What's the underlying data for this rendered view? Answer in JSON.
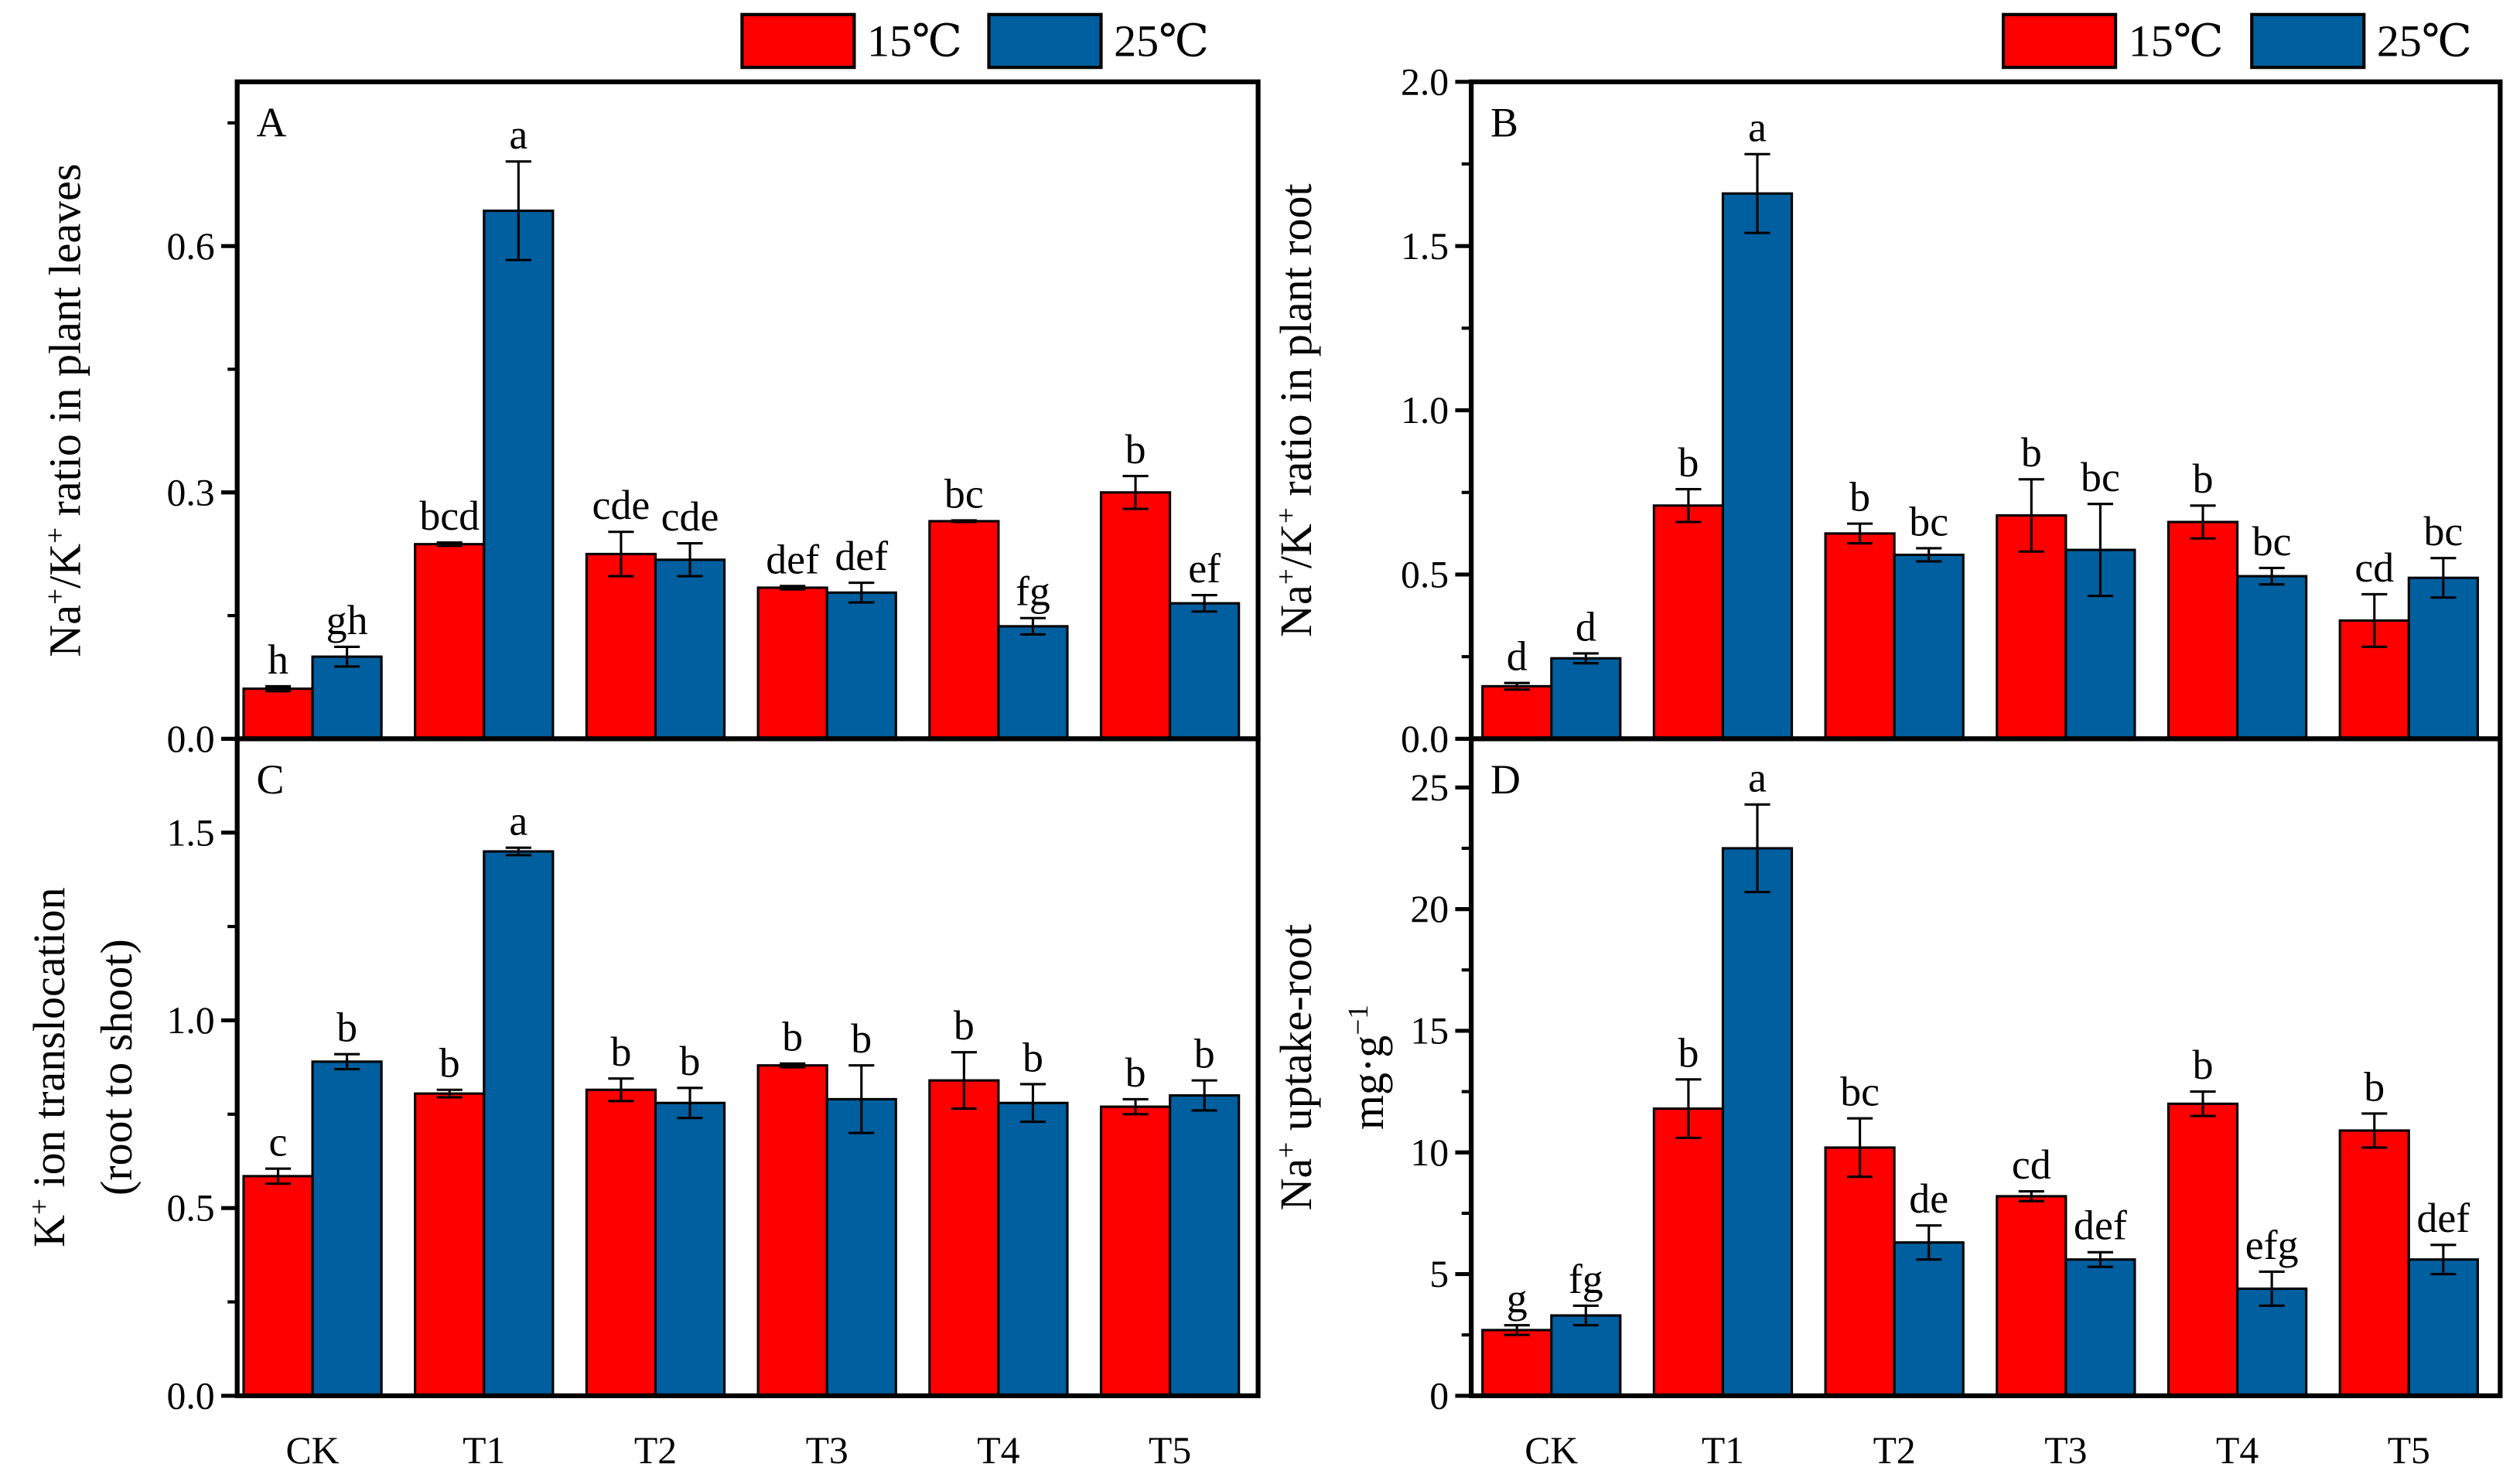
{
  "legend": [
    {
      "label": "15℃",
      "color": "#ff0000"
    },
    {
      "label": "25℃",
      "color": "#005f9e"
    }
  ],
  "chart_data": [
    {
      "type": "bar",
      "panel": "A",
      "categories": [
        "CK",
        "T1",
        "T2",
        "T3",
        "T4",
        "T5"
      ],
      "ylabel_parts": [
        [
          "Na",
          ""
        ],
        [
          "+",
          "sup"
        ],
        [
          "/K",
          ""
        ],
        [
          "+",
          "sup"
        ],
        [
          " ratio in plant leaves",
          ""
        ]
      ],
      "ylabel2_parts": [],
      "ylim": [
        0,
        0.8
      ],
      "yticks": [
        0.0,
        0.3,
        0.6
      ],
      "ytick_labels": [
        "0.0",
        "0.3",
        "0.6"
      ],
      "minor_step": 0.15,
      "show_xlabels": false,
      "series": [
        {
          "name": "15℃",
          "values": [
            0.061,
            0.237,
            0.225,
            0.184,
            0.265,
            0.3
          ],
          "errors": [
            0.003,
            0.002,
            0.027,
            0.002,
            0.001,
            0.02
          ],
          "letters": [
            "h",
            "bcd",
            "cde",
            "def",
            "bc",
            "b"
          ]
        },
        {
          "name": "25℃",
          "values": [
            0.1,
            0.643,
            0.218,
            0.178,
            0.137,
            0.165
          ],
          "errors": [
            0.012,
            0.06,
            0.02,
            0.012,
            0.01,
            0.01
          ],
          "letters": [
            "gh",
            "a",
            "cde",
            "def",
            "fg",
            "ef"
          ]
        }
      ]
    },
    {
      "type": "bar",
      "panel": "B",
      "categories": [
        "CK",
        "T1",
        "T2",
        "T3",
        "T4",
        "T5"
      ],
      "ylabel_parts": [
        [
          "Na",
          ""
        ],
        [
          "+",
          "sup"
        ],
        [
          "/K",
          ""
        ],
        [
          "+",
          "sup"
        ],
        [
          " ratio in plant root",
          ""
        ]
      ],
      "ylabel2_parts": [],
      "ylim": [
        0,
        2.0
      ],
      "yticks": [
        0.0,
        0.5,
        1.0,
        1.5,
        2.0
      ],
      "ytick_labels": [
        "0.0",
        "0.5",
        "1.0",
        "1.5",
        "2.0"
      ],
      "minor_step": 0.25,
      "show_xlabels": false,
      "series": [
        {
          "name": "15℃",
          "values": [
            0.16,
            0.71,
            0.625,
            0.68,
            0.66,
            0.36
          ],
          "errors": [
            0.01,
            0.05,
            0.03,
            0.11,
            0.05,
            0.08
          ],
          "letters": [
            "d",
            "b",
            "b",
            "b",
            "b",
            "cd"
          ]
        },
        {
          "name": "25℃",
          "values": [
            0.245,
            1.66,
            0.56,
            0.575,
            0.495,
            0.49
          ],
          "errors": [
            0.015,
            0.12,
            0.02,
            0.14,
            0.025,
            0.06
          ],
          "letters": [
            "d",
            "a",
            "bc",
            "bc",
            "bc",
            "bc"
          ]
        }
      ]
    },
    {
      "type": "bar",
      "panel": "C",
      "categories": [
        "CK",
        "T1",
        "T2",
        "T3",
        "T4",
        "T5"
      ],
      "ylabel_parts": [
        [
          "K",
          ""
        ],
        [
          "+",
          "sup"
        ],
        [
          " ion translocation",
          ""
        ]
      ],
      "ylabel2_parts": [
        [
          "(root to shoot)",
          ""
        ]
      ],
      "ylim": [
        0,
        1.75
      ],
      "yticks": [
        0.0,
        0.5,
        1.0,
        1.5
      ],
      "ytick_labels": [
        "0.0",
        "0.5",
        "1.0",
        "1.5"
      ],
      "minor_step": 0.25,
      "show_xlabels": true,
      "series": [
        {
          "name": "15℃",
          "values": [
            0.585,
            0.805,
            0.815,
            0.88,
            0.84,
            0.77
          ],
          "errors": [
            0.02,
            0.01,
            0.03,
            0.005,
            0.075,
            0.02
          ],
          "letters": [
            "c",
            "b",
            "b",
            "b",
            "b",
            "b"
          ]
        },
        {
          "name": "25℃",
          "values": [
            0.89,
            1.45,
            0.78,
            0.79,
            0.78,
            0.8
          ],
          "errors": [
            0.02,
            0.01,
            0.04,
            0.09,
            0.05,
            0.04
          ],
          "letters": [
            "b",
            "a",
            "b",
            "b",
            "b",
            "b"
          ]
        }
      ]
    },
    {
      "type": "bar",
      "panel": "D",
      "categories": [
        "CK",
        "T1",
        "T2",
        "T3",
        "T4",
        "T5"
      ],
      "ylabel_parts": [
        [
          "Na",
          ""
        ],
        [
          "+",
          "sup"
        ],
        [
          " uptake-root",
          ""
        ]
      ],
      "ylabel2_parts": [
        [
          "mg·g",
          ""
        ],
        [
          "−1",
          "sup"
        ]
      ],
      "ylim": [
        0,
        27
      ],
      "yticks": [
        0,
        5,
        10,
        15,
        20,
        25
      ],
      "ytick_labels": [
        "0",
        "5",
        "10",
        "15",
        "20",
        "25"
      ],
      "minor_step": 2.5,
      "show_xlabels": true,
      "series": [
        {
          "name": "15℃",
          "values": [
            2.7,
            11.8,
            10.2,
            8.2,
            12.0,
            10.9
          ],
          "errors": [
            0.2,
            1.2,
            1.2,
            0.2,
            0.5,
            0.7
          ],
          "letters": [
            "g",
            "b",
            "bc",
            "cd",
            "b",
            "b"
          ]
        },
        {
          "name": "25℃",
          "values": [
            3.3,
            22.5,
            6.3,
            5.6,
            4.4,
            5.6
          ],
          "errors": [
            0.4,
            1.8,
            0.7,
            0.3,
            0.7,
            0.6
          ],
          "letters": [
            "fg",
            "a",
            "de",
            "def",
            "efg",
            "def"
          ]
        }
      ]
    }
  ]
}
